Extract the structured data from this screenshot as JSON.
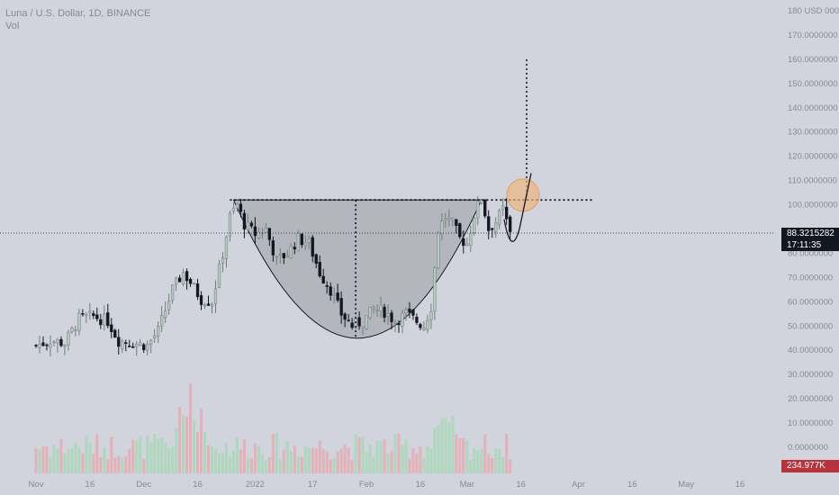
{
  "legend": {
    "title": "Luna / U.S. Dollar, 1D, BINANCE",
    "volume_label": "Vol"
  },
  "last_price": {
    "value": "88.3215282",
    "countdown": "17:11:35"
  },
  "volume_readout": "234.977K",
  "colors": {
    "background": "#d1d4dc",
    "up_candle": "#b7c7c2",
    "down_candle": "#131722",
    "volume_up": "#a9d7b9",
    "volume_down": "#e8a9b4",
    "cup_fill": "#9a9ca3",
    "breakout_circle": "#f0b27a"
  },
  "chart_data": {
    "type": "candlestick",
    "title": "Luna / U.S. Dollar, 1D, BINANCE",
    "currency": "USD",
    "y_axis": {
      "ylim": [
        0,
        180
      ],
      "tick_labels": [
        "180 USD 000",
        "170.0000000",
        "160.0000000",
        "150.0000000",
        "140.0000000",
        "130.0000000",
        "120.0000000",
        "110.0000000",
        "100.0000000",
        "80.0000000",
        "70.0000000",
        "60.0000000",
        "50.0000000",
        "40.0000000",
        "30.0000000",
        "20.0000000",
        "10.0000000",
        "0.0000000"
      ],
      "tick_values": [
        180,
        170,
        160,
        150,
        140,
        130,
        120,
        110,
        100,
        80,
        70,
        60,
        50,
        40,
        30,
        20,
        10,
        0
      ]
    },
    "x_axis": {
      "tick_labels": [
        "Nov",
        "16",
        "Dec",
        "16",
        "2022",
        "17",
        "Feb",
        "16",
        "Mar",
        "16",
        "Apr",
        "16",
        "May",
        "16"
      ],
      "tick_days": [
        0,
        15,
        30,
        45,
        61,
        77,
        92,
        107,
        120,
        135,
        151,
        166,
        181,
        196
      ]
    },
    "last_price": 88.3215282,
    "annotations": {
      "resistance_level": 102,
      "cup_bottom": 45,
      "target_level": 160,
      "breakout_circle_center": 104,
      "cup_left_day": 55,
      "cup_right_day": 124,
      "cup_midline_day": 89
    },
    "price_path": [
      {
        "day": 0,
        "close": 42
      },
      {
        "day": 4,
        "close": 44
      },
      {
        "day": 8,
        "close": 43
      },
      {
        "day": 12,
        "close": 53
      },
      {
        "day": 16,
        "close": 54
      },
      {
        "day": 20,
        "close": 52
      },
      {
        "day": 23,
        "close": 44
      },
      {
        "day": 27,
        "close": 43
      },
      {
        "day": 31,
        "close": 42
      },
      {
        "day": 34,
        "close": 48
      },
      {
        "day": 38,
        "close": 65
      },
      {
        "day": 41,
        "close": 72
      },
      {
        "day": 43,
        "close": 68
      },
      {
        "day": 46,
        "close": 61
      },
      {
        "day": 49,
        "close": 60
      },
      {
        "day": 52,
        "close": 80
      },
      {
        "day": 54,
        "close": 95
      },
      {
        "day": 56,
        "close": 100
      },
      {
        "day": 58,
        "close": 92
      },
      {
        "day": 61,
        "close": 88
      },
      {
        "day": 64,
        "close": 90
      },
      {
        "day": 67,
        "close": 77
      },
      {
        "day": 70,
        "close": 80
      },
      {
        "day": 73,
        "close": 86
      },
      {
        "day": 76,
        "close": 84
      },
      {
        "day": 79,
        "close": 72
      },
      {
        "day": 82,
        "close": 65
      },
      {
        "day": 85,
        "close": 55
      },
      {
        "day": 88,
        "close": 50
      },
      {
        "day": 91,
        "close": 52
      },
      {
        "day": 94,
        "close": 57
      },
      {
        "day": 97,
        "close": 56
      },
      {
        "day": 100,
        "close": 52
      },
      {
        "day": 103,
        "close": 55
      },
      {
        "day": 106,
        "close": 52
      },
      {
        "day": 108,
        "close": 50
      },
      {
        "day": 110,
        "close": 58
      },
      {
        "day": 112,
        "close": 90
      },
      {
        "day": 114,
        "close": 95
      },
      {
        "day": 116,
        "close": 92
      },
      {
        "day": 118,
        "close": 86
      },
      {
        "day": 120,
        "close": 84
      },
      {
        "day": 122,
        "close": 96
      },
      {
        "day": 124,
        "close": 103
      },
      {
        "day": 126,
        "close": 90
      },
      {
        "day": 128,
        "close": 93
      },
      {
        "day": 130,
        "close": 98
      },
      {
        "day": 132,
        "close": 88
      }
    ]
  }
}
